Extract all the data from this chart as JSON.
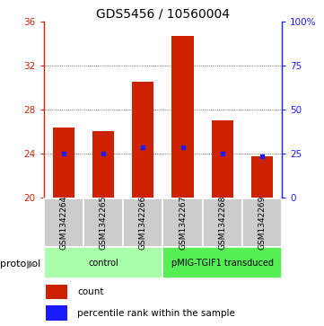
{
  "title": "GDS5456 / 10560004",
  "samples": [
    "GSM1342264",
    "GSM1342265",
    "GSM1342266",
    "GSM1342267",
    "GSM1342268",
    "GSM1342269"
  ],
  "bar_tops": [
    26.3,
    26.0,
    30.5,
    34.7,
    27.0,
    23.7
  ],
  "blue_markers": [
    24.0,
    24.0,
    24.5,
    24.5,
    24.0,
    23.7
  ],
  "bar_bottom": 20.0,
  "ylim_left": [
    20,
    36
  ],
  "ylim_right": [
    0,
    100
  ],
  "yticks_left": [
    20,
    24,
    28,
    32,
    36
  ],
  "ytick_labels_left": [
    "20",
    "24",
    "28",
    "32",
    "36"
  ],
  "yticks_right": [
    0,
    25,
    50,
    75,
    100
  ],
  "ytick_labels_right": [
    "0",
    "25",
    "50",
    "75",
    "100%"
  ],
  "bar_color": "#cc2200",
  "marker_color": "#1a1aff",
  "groups": [
    {
      "label": "control",
      "indices": [
        0,
        1,
        2
      ],
      "color": "#aaffaa"
    },
    {
      "label": "pMIG-TGIF1 transduced",
      "indices": [
        3,
        4,
        5
      ],
      "color": "#55ee55"
    }
  ],
  "protocol_label": "protocol",
  "legend_count_label": "count",
  "legend_pct_label": "percentile rank within the sample",
  "sample_bg": "#cccccc",
  "title_fontsize": 10,
  "tick_fontsize": 7.5,
  "sample_label_fontsize": 6.5,
  "group_label_fontsize": 7,
  "legend_fontsize": 7.5,
  "bar_width": 0.55,
  "grid_yticks": [
    24,
    28,
    32
  ]
}
